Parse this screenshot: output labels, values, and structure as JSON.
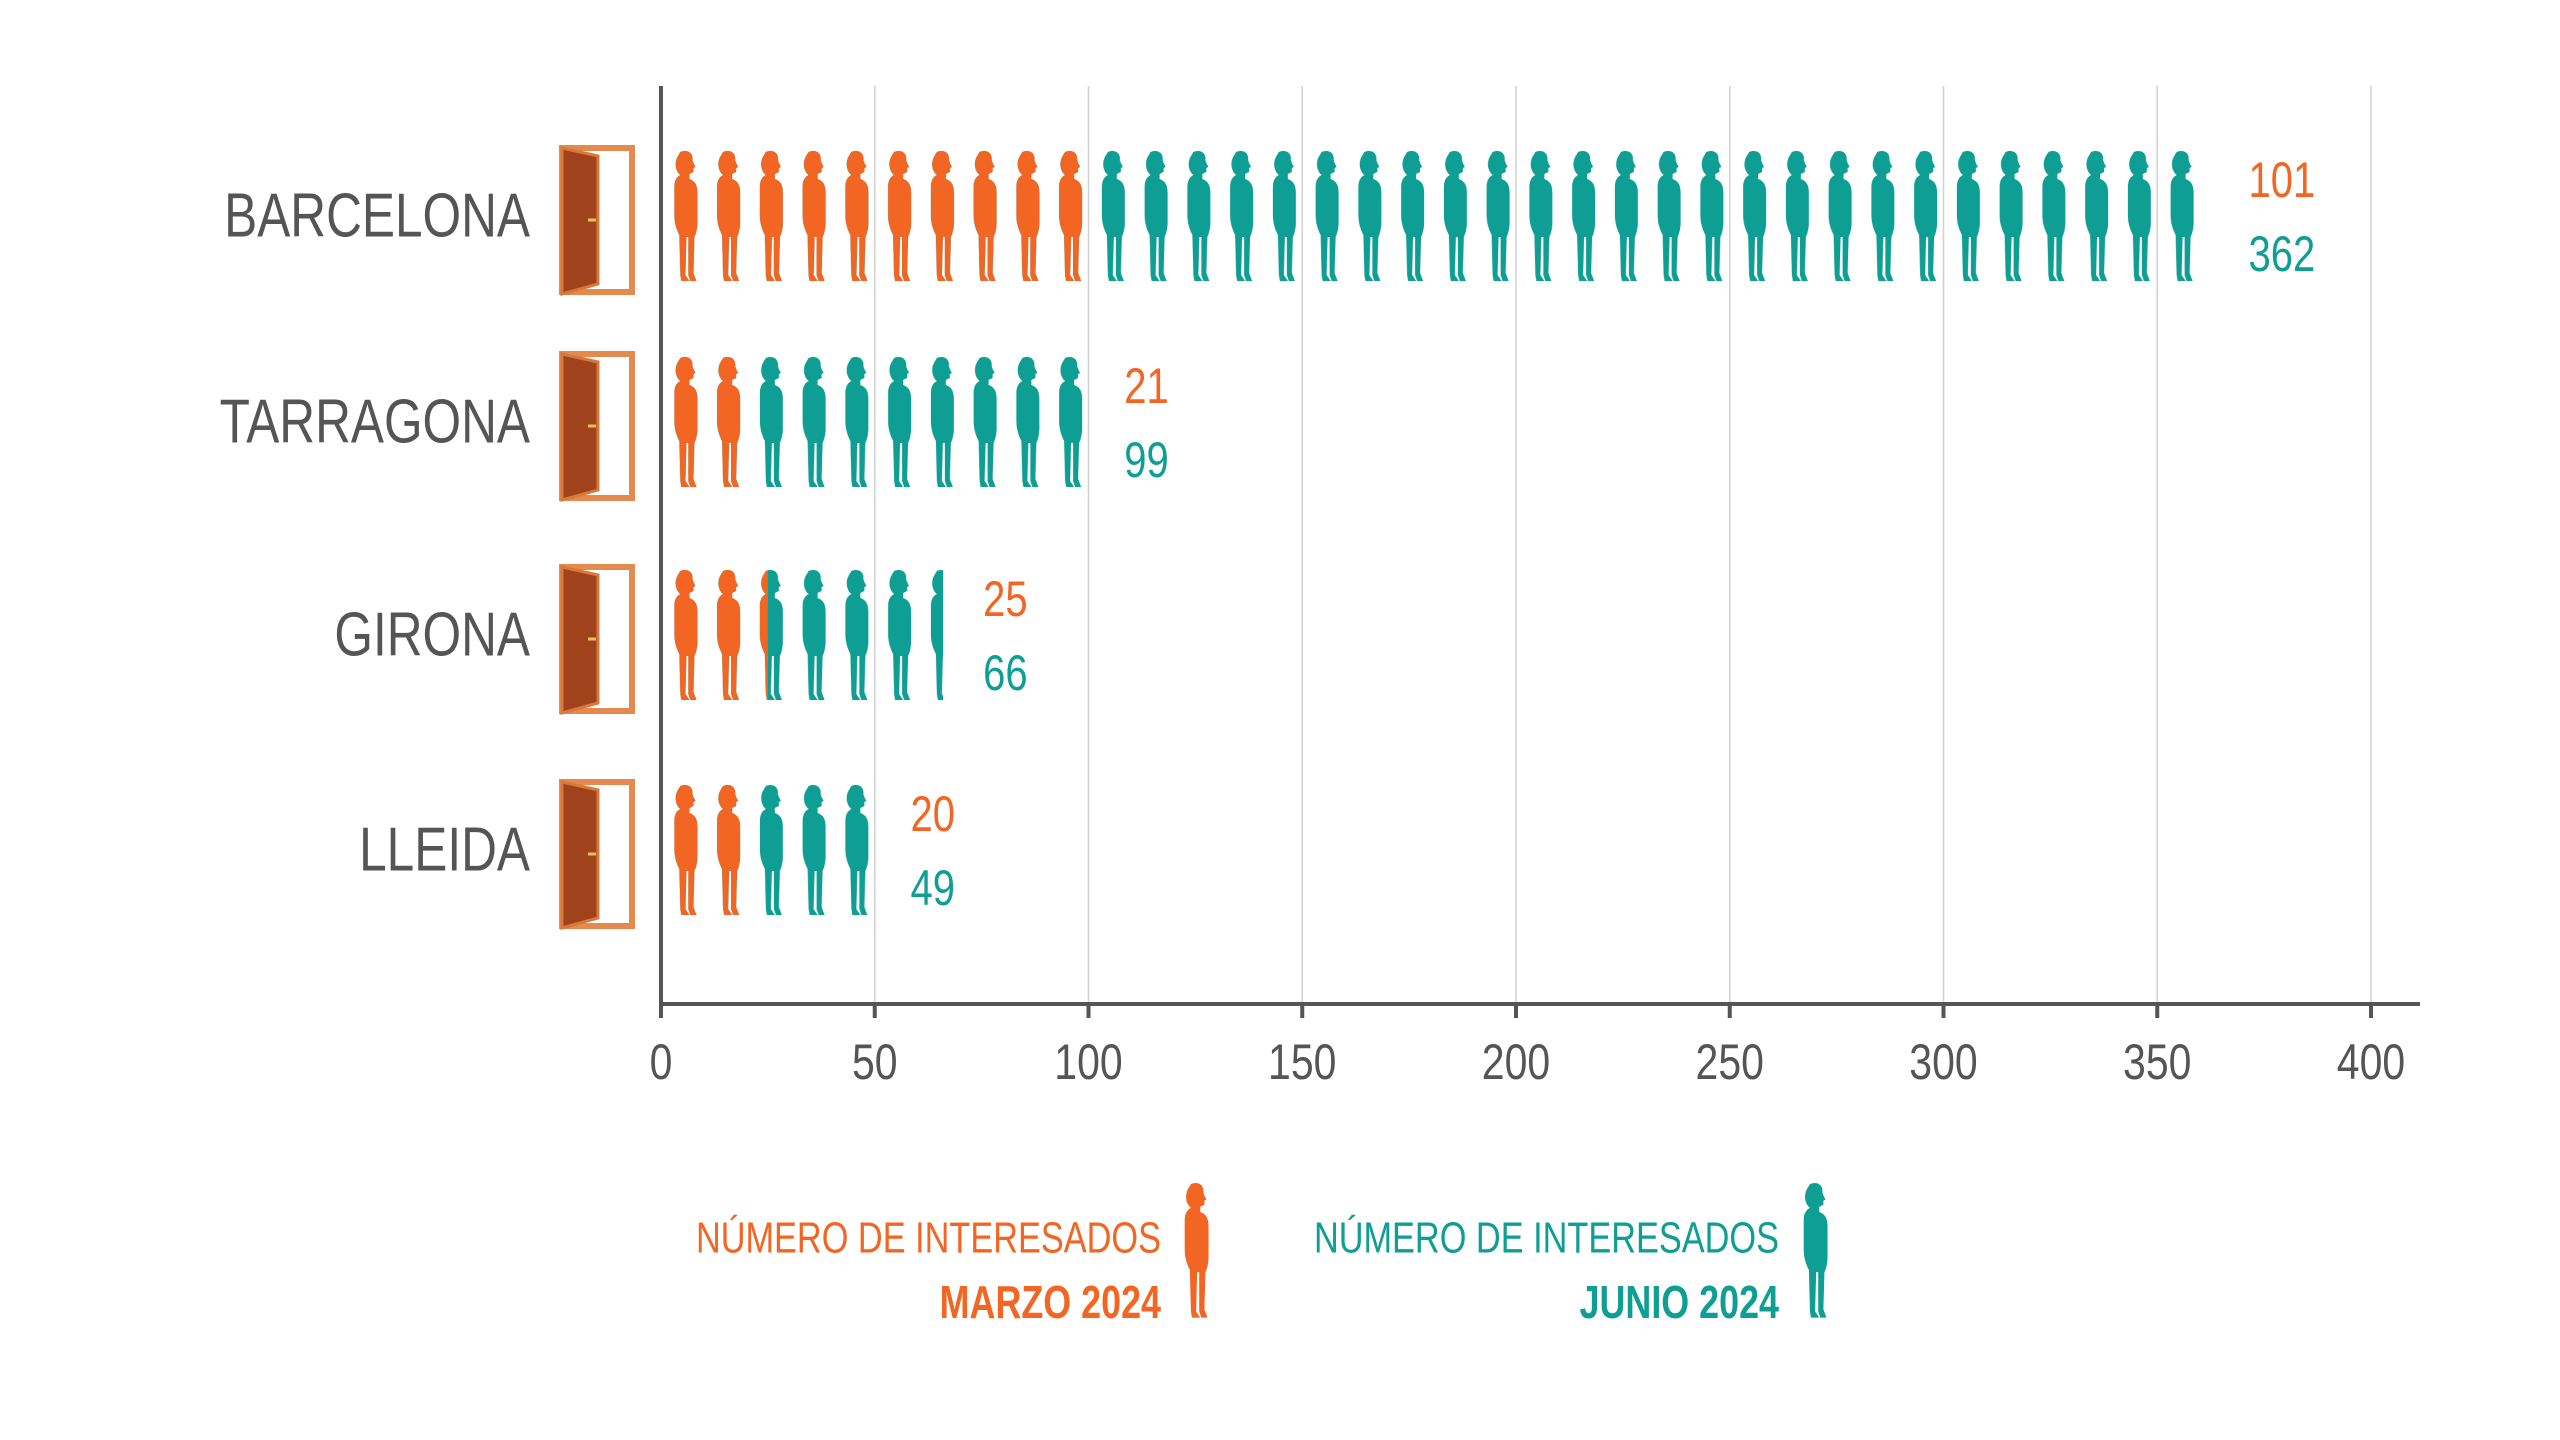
{
  "chart_data": {
    "type": "pictogram-bar",
    "categories": [
      "BARCELONA",
      "TARRAGONA",
      "GIRONA",
      "LLEIDA"
    ],
    "legend_title": "NÚMERO DE INTERESADOS",
    "series": [
      {
        "name": "MARZO 2024",
        "color": "#f26522",
        "values": [
          101,
          21,
          25,
          20
        ]
      },
      {
        "name": "JUNIO 2024",
        "color": "#0f9e93",
        "values": [
          362,
          99,
          66,
          49
        ]
      }
    ],
    "xlim": [
      0,
      400
    ],
    "xticks": [
      0,
      50,
      100,
      150,
      200,
      250,
      300,
      350,
      400
    ],
    "grid": true
  }
}
